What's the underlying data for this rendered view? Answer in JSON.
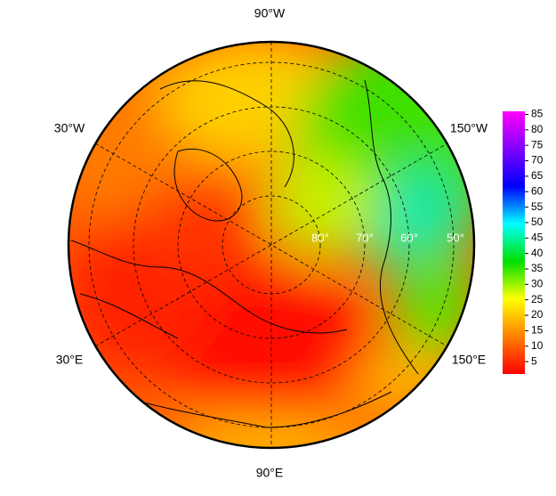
{
  "map": {
    "longitude_labels": {
      "top": "90°W",
      "bottom": "90°E",
      "upper_left": "30°W",
      "upper_right": "150°W",
      "lower_left": "30°E",
      "lower_right": "150°E"
    },
    "latitude_labels": [
      "80°",
      "70°",
      "60°",
      "50°"
    ],
    "colorbar": {
      "lim": [
        1,
        86
      ],
      "ticks": [
        5,
        10,
        15,
        20,
        25,
        30,
        35,
        40,
        45,
        50,
        55,
        60,
        65,
        70,
        75,
        80,
        85
      ],
      "colormap": [
        "#ff0000",
        "#ff8000",
        "#ffff00",
        "#00e000",
        "#00ffff",
        "#0000ff",
        "#8000ff",
        "#ff00ff"
      ]
    }
  }
}
